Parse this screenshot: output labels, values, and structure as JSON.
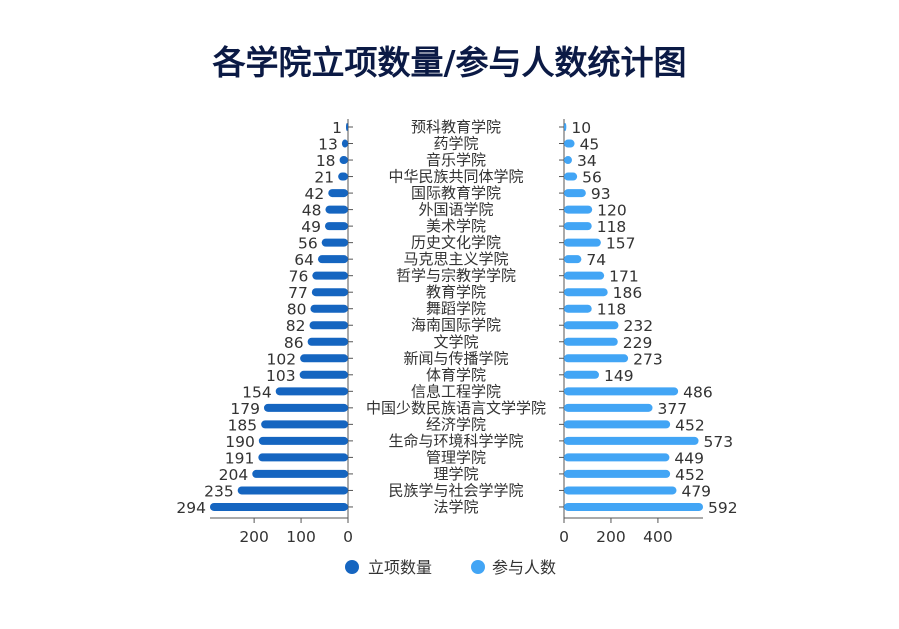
{
  "chart_data": {
    "type": "bar",
    "orientation": "horizontal-butterfly",
    "title": "各学院立项数量/参与人数统计图",
    "categories": [
      "预科教育学院",
      "药学院",
      "音乐学院",
      "中华民族共同体学院",
      "国际教育学院",
      "外国语学院",
      "美术学院",
      "历史文化学院",
      "马克思主义学院",
      "哲学与宗教学学院",
      "教育学院",
      "舞蹈学院",
      "海南国际学院",
      "文学院",
      "新闻与传播学院",
      "体育学院",
      "信息工程学院",
      "中国少数民族语言文学学院",
      "经济学院",
      "生命与环境科学学院",
      "管理学院",
      "理学院",
      "民族学与社会学学院",
      "法学院"
    ],
    "series": [
      {
        "name": "立项数量",
        "color": "#1565c0",
        "side": "left",
        "xlim": [
          0,
          294
        ],
        "ticks": [
          0,
          100,
          200
        ],
        "values": [
          1,
          13,
          18,
          21,
          42,
          48,
          49,
          56,
          64,
          76,
          77,
          80,
          82,
          86,
          102,
          103,
          154,
          179,
          185,
          190,
          191,
          204,
          235,
          294
        ]
      },
      {
        "name": "参与人数",
        "color": "#42a5f5",
        "side": "right",
        "xlim": [
          0,
          592
        ],
        "ticks": [
          0,
          200,
          400
        ],
        "values": [
          10,
          45,
          34,
          56,
          93,
          120,
          118,
          157,
          74,
          171,
          186,
          118,
          232,
          229,
          273,
          149,
          486,
          377,
          452,
          573,
          449,
          452,
          479,
          592
        ]
      }
    ],
    "legend": "bottom",
    "grid": false
  }
}
